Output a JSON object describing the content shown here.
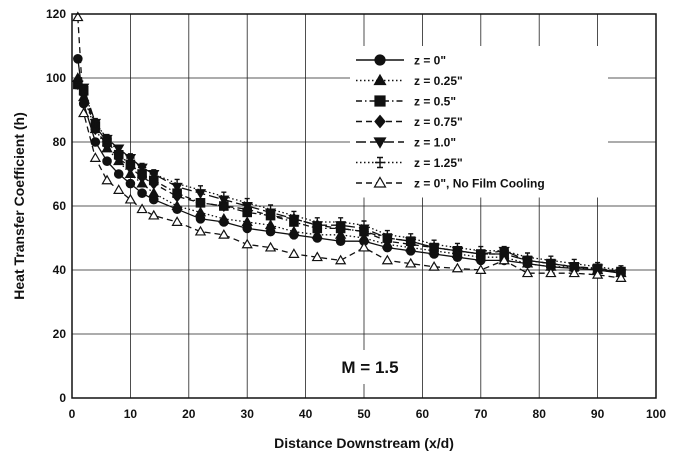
{
  "chart_data": {
    "type": "line",
    "title": "",
    "xlabel": "Distance Downstream (x/d)",
    "ylabel": "Heat Transfer Coefficient (h)",
    "xlim": [
      0,
      100
    ],
    "ylim": [
      0,
      120
    ],
    "xticks": [
      0,
      10,
      20,
      30,
      40,
      50,
      60,
      70,
      80,
      90,
      100
    ],
    "yticks": [
      0,
      20,
      40,
      60,
      80,
      100,
      120
    ],
    "grid": true,
    "legend_position": "top-right",
    "annotation": "M = 1.5",
    "series": [
      {
        "name": "z = 0\"",
        "marker": "circle-filled",
        "dash": "solid",
        "x": [
          1,
          2,
          4,
          6,
          8,
          10,
          12,
          14,
          18,
          22,
          26,
          30,
          34,
          38,
          42,
          46,
          50,
          54,
          58,
          62,
          66,
          70,
          74,
          78,
          82,
          86,
          90,
          94
        ],
        "y": [
          106,
          92,
          80,
          74,
          70,
          67,
          64,
          62,
          59,
          56,
          55,
          53,
          52,
          51,
          50,
          49,
          49,
          47,
          46,
          45,
          44,
          43,
          43,
          42,
          41,
          40.5,
          40,
          39
        ]
      },
      {
        "name": "z = 0.25\"",
        "marker": "triangle-up-filled",
        "dash": "dotted",
        "x": [
          1,
          2,
          4,
          6,
          8,
          10,
          12,
          14,
          18,
          22,
          26,
          30,
          34,
          38,
          42,
          46,
          50,
          54,
          58,
          62,
          66,
          70,
          74,
          78,
          82,
          86,
          90,
          94
        ],
        "y": [
          100,
          94,
          84,
          78,
          74,
          70,
          67,
          64,
          60,
          58,
          56,
          55,
          54,
          52,
          51,
          51,
          50,
          48,
          47,
          46,
          45,
          44,
          44,
          42,
          41,
          41,
          40,
          39
        ]
      },
      {
        "name": "z = 0.5\"",
        "marker": "square-filled",
        "dash": "dashdot",
        "x": [
          1,
          2,
          4,
          6,
          8,
          10,
          12,
          14,
          18,
          22,
          26,
          30,
          34,
          38,
          42,
          46,
          50,
          54,
          58,
          62,
          66,
          70,
          74,
          78,
          82,
          86,
          90,
          94
        ],
        "y": [
          98,
          96,
          85,
          80,
          76,
          73,
          70,
          68,
          64,
          61,
          60,
          58,
          57,
          55,
          53,
          53,
          52,
          50,
          49,
          47,
          46,
          45,
          45,
          43,
          42,
          41,
          40.5,
          39.5
        ]
      },
      {
        "name": "z = 0.75\"",
        "marker": "diamond-filled",
        "dash": "dashed",
        "x": [
          1,
          2,
          4,
          6,
          8,
          10,
          12,
          14,
          18,
          22,
          26,
          30,
          34,
          38,
          42,
          46,
          50,
          54,
          58,
          62,
          66,
          70,
          74,
          78,
          82,
          86,
          90,
          94
        ],
        "y": [
          99,
          95,
          84,
          79,
          75,
          72,
          69,
          67,
          63,
          61,
          60,
          59,
          57,
          56,
          54,
          53,
          52,
          49,
          48,
          47,
          46,
          45,
          45,
          43,
          42,
          41,
          40.5,
          39.5
        ]
      },
      {
        "name": "z = 1.0\"",
        "marker": "triangle-down-filled",
        "dash": "longdash",
        "x": [
          1,
          2,
          4,
          6,
          8,
          10,
          12,
          14,
          18,
          22,
          26,
          30,
          34,
          38,
          42,
          46,
          50,
          54,
          58,
          62,
          66,
          70,
          74,
          78,
          82,
          86,
          90,
          94
        ],
        "y": [
          98,
          97,
          86,
          81,
          78,
          75,
          72,
          70,
          66,
          64,
          62,
          60,
          58,
          56,
          54,
          54,
          53,
          50,
          49,
          47,
          46,
          45,
          46,
          43,
          42,
          41,
          40.5,
          39
        ]
      },
      {
        "name": "z = 1.25\"",
        "marker": "plus",
        "dash": "dotted",
        "x": [
          1,
          2,
          4,
          6,
          8,
          10,
          12,
          14,
          18,
          22,
          26,
          30,
          34,
          38,
          42,
          46,
          50,
          54,
          58,
          62,
          66,
          70,
          74,
          78,
          82,
          86,
          90,
          94
        ],
        "y": [
          98,
          96,
          86,
          81,
          77,
          75,
          72,
          70,
          67,
          65,
          63,
          61,
          59,
          57,
          55,
          55,
          54,
          51,
          50,
          48,
          47,
          46,
          46,
          44,
          43,
          42,
          41,
          40
        ]
      },
      {
        "name": "z = 0\", No Film Cooling",
        "marker": "triangle-up-open",
        "dash": "dashed",
        "x": [
          1,
          2,
          4,
          6,
          8,
          10,
          12,
          14,
          18,
          22,
          26,
          30,
          34,
          38,
          42,
          46,
          50,
          54,
          58,
          62,
          66,
          70,
          74,
          78,
          82,
          86,
          90,
          94
        ],
        "y": [
          119,
          89,
          75,
          68,
          65,
          62,
          59,
          57,
          55,
          52,
          51,
          48,
          47,
          45,
          44,
          43,
          47,
          43,
          42,
          41,
          40.5,
          40,
          43,
          39,
          39,
          39,
          38.5,
          37.5
        ]
      }
    ]
  }
}
